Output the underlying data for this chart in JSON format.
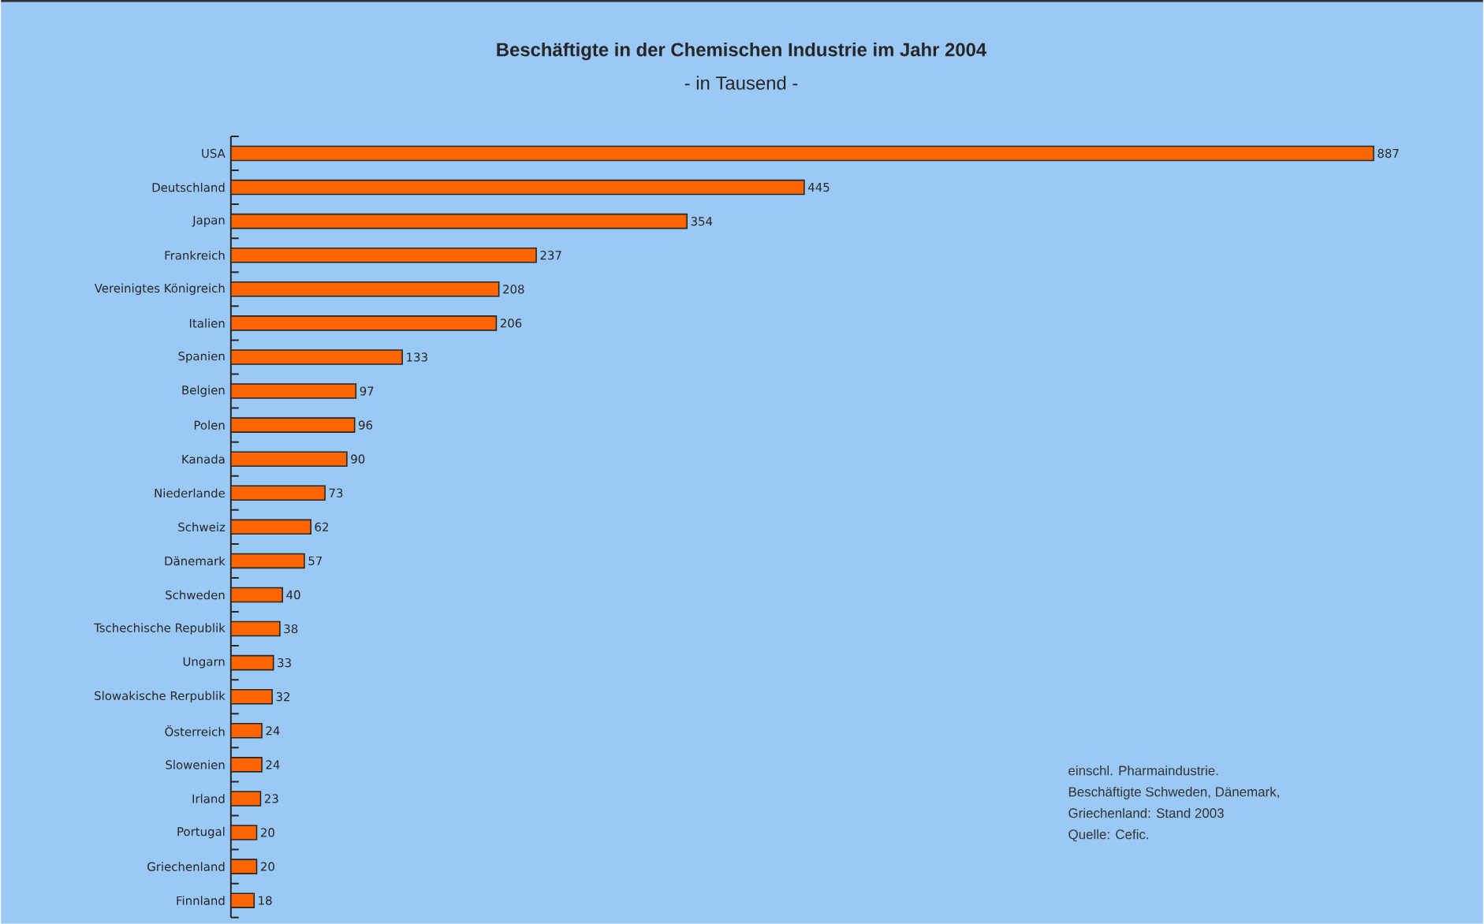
{
  "chart_data": {
    "type": "bar",
    "orientation": "horizontal",
    "title": "Beschäftigte in der Chemischen Industrie im Jahr 2004",
    "subtitle": "- in Tausend -",
    "categories": [
      "USA",
      "Deutschland",
      "Japan",
      "Frankreich",
      "Vereinigtes Königreich",
      "Italien",
      "Spanien",
      "Belgien",
      "Polen",
      "Kanada",
      "Niederlande",
      "Schweiz",
      "Dänemark",
      "Schweden",
      "Tschechische Republik",
      "Ungarn",
      "Slowakische Rerpublik",
      "Österreich",
      "Slowenien",
      "Irland",
      "Portugal",
      "Griechenland",
      "Finnland"
    ],
    "values": [
      887,
      445,
      354,
      237,
      208,
      206,
      133,
      97,
      96,
      90,
      73,
      62,
      57,
      40,
      38,
      33,
      32,
      24,
      24,
      23,
      20,
      20,
      18
    ],
    "color": "#ff6600",
    "data_labels": true,
    "tick_labels": "y",
    "annotations": [
      "einschl. Pharmaindustrie.",
      "Beschäftigte Schweden, Dänemark,",
      "Griechenland: Stand 2003",
      "Quelle: Cefic."
    ]
  }
}
